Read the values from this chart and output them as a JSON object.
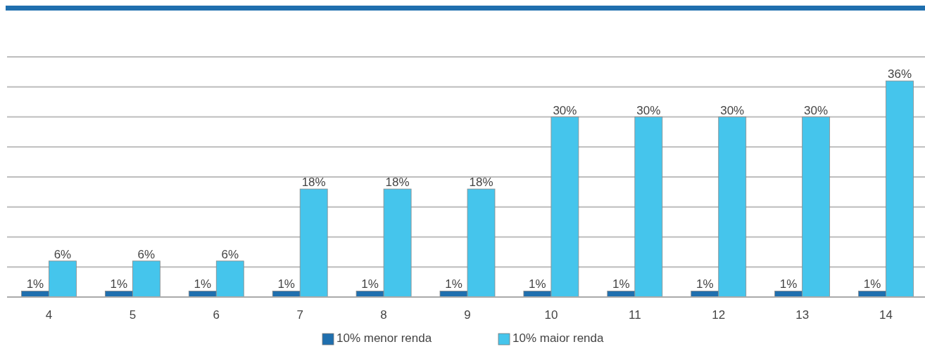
{
  "chart_data": {
    "type": "bar",
    "categories": [
      "4",
      "5",
      "6",
      "7",
      "8",
      "9",
      "10",
      "11",
      "12",
      "13",
      "14"
    ],
    "series": [
      {
        "name": "10% menor renda",
        "color": "#1f6fae",
        "values": [
          1,
          1,
          1,
          1,
          1,
          1,
          1,
          1,
          1,
          1,
          1
        ],
        "value_labels": [
          "1%",
          "1%",
          "1%",
          "1%",
          "1%",
          "1%",
          "1%",
          "1%",
          "1%",
          "1%",
          "1%"
        ]
      },
      {
        "name": "10% maior renda",
        "color": "#45c5ec",
        "values": [
          6,
          6,
          6,
          18,
          18,
          18,
          30,
          30,
          30,
          30,
          36
        ],
        "value_labels": [
          "6%",
          "6%",
          "6%",
          "18%",
          "18%",
          "18%",
          "30%",
          "30%",
          "30%",
          "30%",
          "36%"
        ]
      }
    ],
    "ylim": [
      0,
      40
    ],
    "yticks": [
      {
        "value": 0,
        "label": null
      },
      {
        "value": 5,
        "label": null
      },
      {
        "value": 10,
        "label": null
      },
      {
        "value": 15,
        "label": null
      },
      {
        "value": 20,
        "label": null
      },
      {
        "value": 25,
        "label": null
      },
      {
        "value": 30,
        "label": null
      },
      {
        "value": 35,
        "label": null
      },
      {
        "value": 40,
        "label": null
      }
    ],
    "tick_labels": "x",
    "grid": "y",
    "legend": "bottom"
  }
}
